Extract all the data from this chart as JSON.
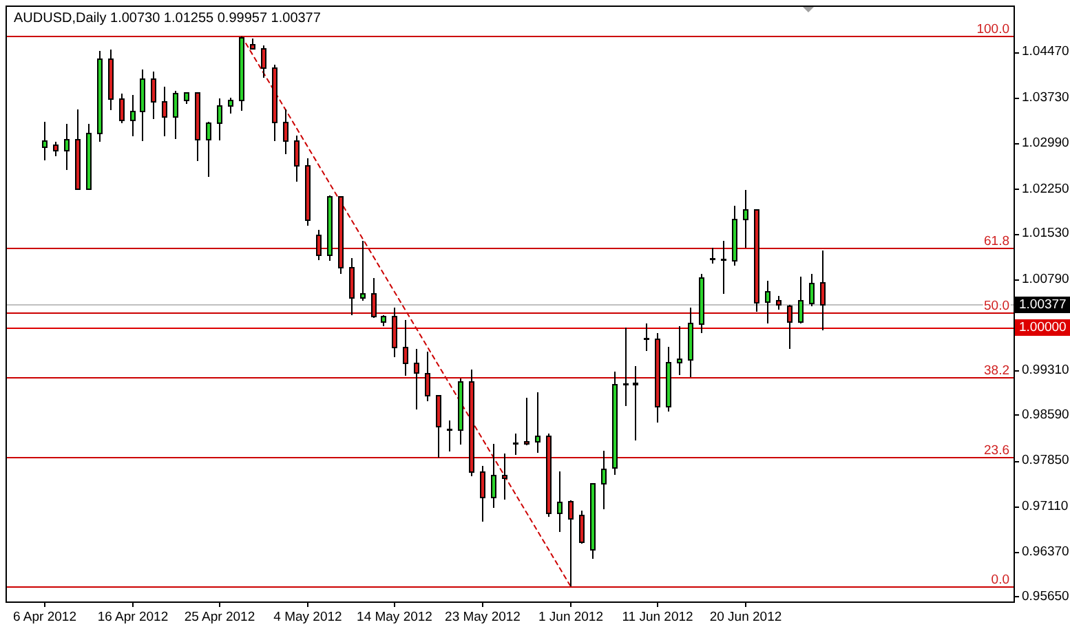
{
  "chart_data": {
    "type": "candlestick",
    "title": "AUDUSD,Daily 1.00730 1.01255 0.99957 1.00377",
    "categories": [
      null,
      null,
      null,
      "6 Apr 2012",
      null,
      null,
      null,
      null,
      null,
      null,
      null,
      "16 Apr 2012",
      null,
      null,
      null,
      null,
      null,
      null,
      null,
      "25 Apr 2012",
      null,
      null,
      null,
      null,
      null,
      null,
      null,
      "4 May 2012",
      null,
      null,
      null,
      null,
      null,
      null,
      null,
      "14 May 2012",
      null,
      null,
      null,
      null,
      null,
      null,
      null,
      "23 May 2012",
      null,
      null,
      null,
      null,
      null,
      null,
      null,
      "1 Jun 2012",
      null,
      null,
      null,
      null,
      null,
      null,
      null,
      "11 Jun 2012",
      null,
      null,
      null,
      null,
      null,
      null,
      null,
      "20 Jun 2012",
      null,
      null,
      null,
      null,
      null,
      null,
      null,
      null,
      null,
      null,
      null,
      null,
      null,
      null,
      null,
      null,
      null,
      null,
      null,
      null,
      null,
      null,
      null,
      null
    ],
    "ohlc": [
      null,
      null,
      null,
      [
        1.0292,
        1.0334,
        1.0271,
        1.0303
      ],
      [
        1.0296,
        1.0301,
        1.0278,
        1.0287
      ],
      [
        1.0287,
        1.033,
        1.0256,
        1.0305
      ],
      [
        1.0305,
        1.0354,
        1.0225,
        1.0225
      ],
      [
        1.0225,
        1.033,
        1.0225,
        1.0315
      ],
      [
        1.0315,
        1.0449,
        1.0301,
        1.0435
      ],
      [
        1.0435,
        1.0451,
        1.0353,
        1.037
      ],
      [
        1.037,
        1.0379,
        1.0332,
        1.0336
      ],
      [
        1.0336,
        1.0377,
        1.031,
        1.035
      ],
      [
        1.035,
        1.0418,
        1.0302,
        1.0403
      ],
      [
        1.0403,
        1.0415,
        1.0338,
        1.0366
      ],
      [
        1.0366,
        1.039,
        1.031,
        1.0342
      ],
      [
        1.0341,
        1.0384,
        1.0306,
        1.0379
      ],
      [
        1.0368,
        1.0382,
        1.0363,
        1.0381
      ],
      [
        1.0381,
        1.0381,
        1.027,
        1.0305
      ],
      [
        1.0305,
        1.0334,
        1.0244,
        1.0332
      ],
      [
        1.0332,
        1.0372,
        1.0304,
        1.0359
      ],
      [
        1.0359,
        1.0373,
        1.0347,
        1.0368
      ],
      [
        1.0368,
        1.0472,
        1.0351,
        1.047
      ],
      [
        1.0458,
        1.0468,
        1.0451,
        1.0452
      ],
      [
        1.0452,
        1.0457,
        1.0405,
        1.0421
      ],
      [
        1.0421,
        1.0426,
        1.0302,
        1.0333
      ],
      [
        1.0333,
        1.0354,
        1.0281,
        1.0302
      ],
      [
        1.0302,
        1.0311,
        1.0237,
        1.0262
      ],
      [
        1.0262,
        1.0275,
        1.0165,
        1.0174
      ],
      [
        1.015,
        1.0159,
        1.011,
        1.0118
      ],
      [
        1.0118,
        1.0215,
        1.0109,
        1.0212
      ],
      [
        1.0212,
        1.0213,
        1.0087,
        1.0098
      ],
      [
        1.0098,
        1.0113,
        1.002,
        1.0048
      ],
      [
        1.0048,
        1.0141,
        1.0044,
        1.0055
      ],
      [
        1.0055,
        1.0081,
        1.0016,
        1.0018
      ],
      [
        1.0009,
        1.0021,
        1.0003,
        1.0018
      ],
      [
        1.0018,
        1.0033,
        0.9953,
        0.9968
      ],
      [
        0.9968,
        1.0013,
        0.9922,
        0.9942
      ],
      [
        0.9942,
        0.9966,
        0.9868,
        0.9927
      ],
      [
        0.9926,
        0.9962,
        0.9881,
        0.989
      ],
      [
        0.989,
        0.989,
        0.979,
        0.984
      ],
      [
        0.9836,
        0.985,
        0.98,
        0.9835
      ],
      [
        0.9835,
        0.9918,
        0.9811,
        0.9913
      ],
      [
        0.9913,
        0.9933,
        0.976,
        0.9766
      ],
      [
        0.9766,
        0.9777,
        0.9686,
        0.9725
      ],
      [
        0.9725,
        0.9812,
        0.9709,
        0.9761
      ],
      [
        0.9761,
        0.9797,
        0.9722,
        0.9757
      ],
      [
        0.9812,
        0.9829,
        0.9794,
        0.9813
      ],
      [
        0.9815,
        0.9887,
        0.981,
        0.9812
      ],
      [
        0.9815,
        0.9896,
        0.9798,
        0.9824
      ],
      [
        0.9824,
        0.9829,
        0.9694,
        0.97
      ],
      [
        0.97,
        0.9768,
        0.9669,
        0.9717
      ],
      [
        0.9719,
        0.9721,
        0.9581,
        0.9691
      ],
      [
        0.9696,
        0.9704,
        0.9651,
        0.9653
      ],
      [
        0.9641,
        0.9749,
        0.9626,
        0.9747
      ],
      [
        0.9747,
        0.9801,
        0.9706,
        0.9771
      ],
      [
        0.9773,
        0.9929,
        0.9762,
        0.9908
      ],
      [
        0.9908,
        1.0,
        0.9873,
        0.9909
      ],
      [
        0.991,
        0.9938,
        0.9818,
        0.9908
      ],
      [
        0.9982,
        1.0007,
        0.9963,
        0.9983
      ],
      [
        0.9982,
        0.9992,
        0.9847,
        0.9872
      ],
      [
        0.9872,
        0.9969,
        0.9864,
        0.9944
      ],
      [
        0.9944,
        1.0003,
        0.9924,
        0.9949
      ],
      [
        0.9948,
        1.0033,
        0.992,
        1.0007
      ],
      [
        1.0006,
        1.0087,
        0.9992,
        1.0081
      ],
      [
        1.0111,
        1.013,
        1.0104,
        1.0112
      ],
      [
        1.0111,
        1.0141,
        1.0055,
        1.011
      ],
      [
        1.0109,
        1.0198,
        1.0101,
        1.0176
      ],
      [
        1.0176,
        1.0223,
        1.013,
        1.0191
      ],
      [
        1.0191,
        1.0191,
        1.0026,
        1.0041
      ],
      [
        1.0042,
        1.0076,
        1.0007,
        1.0058
      ],
      [
        1.0044,
        1.0052,
        1.0029,
        1.0037
      ],
      [
        1.0035,
        1.0037,
        0.9966,
        1.0009
      ],
      [
        1.0009,
        1.0083,
        1.0007,
        1.0044
      ],
      [
        1.0039,
        1.0087,
        1.0035,
        1.0072
      ],
      [
        1.0073,
        1.01255,
        0.99957,
        1.00377
      ],
      null,
      null,
      null,
      null,
      null,
      null,
      null,
      null,
      null,
      null,
      null,
      null,
      null,
      null,
      null,
      null,
      null
    ],
    "colors": [
      null,
      null,
      null,
      "#2bd42b",
      "#dc1f1f",
      "#2bd42b",
      "#dc1f1f",
      "#2bd42b",
      "#2bd42b",
      "#dc1f1f",
      "#dc1f1f",
      "#2bd42b",
      "#2bd42b",
      "#dc1f1f",
      "#dc1f1f",
      "#2bd42b",
      "#2bd42b",
      "#dc1f1f",
      "#2bd42b",
      "#2bd42b",
      "#2bd42b",
      "#2bd42b",
      "#dc1f1f",
      "#dc1f1f",
      "#dc1f1f",
      "#dc1f1f",
      "#dc1f1f",
      "#dc1f1f",
      "#dc1f1f",
      "#2bd42b",
      "#dc1f1f",
      "#dc1f1f",
      "#2bd42b",
      "#dc1f1f",
      "#2bd42b",
      "#dc1f1f",
      "#dc1f1f",
      "#dc1f1f",
      "#dc1f1f",
      "#dc1f1f",
      "#dc1f1f",
      "#2bd42b",
      "#dc1f1f",
      "#dc1f1f",
      "#2bd42b",
      "#dc1f1f",
      "#2bd42b",
      "#dc1f1f",
      "#2bd42b",
      "#dc1f1f",
      "#2bd42b",
      "#dc1f1f",
      "#dc1f1f",
      "#2bd42b",
      "#2bd42b",
      "#2bd42b",
      "#2bd42b",
      "#dc1f1f",
      "#2bd42b",
      "#dc1f1f",
      "#2bd42b",
      "#2bd42b",
      "#2bd42b",
      "#2bd42b",
      "#2bd42b",
      "#dc1f1f",
      "#2bd42b",
      "#2bd42b",
      "#dc1f1f",
      "#2bd42b",
      "#dc1f1f",
      "#dc1f1f",
      "#2bd42b",
      "#2bd42b",
      "#dc1f1f",
      null,
      null,
      null,
      null,
      null,
      null,
      null,
      null,
      null,
      null,
      null,
      null,
      null,
      null,
      null,
      null,
      null
    ],
    "series": [
      {
        "type": "line",
        "color": "#cc0000",
        "line_style": "dashed",
        "values": [
          null,
          null,
          null,
          null,
          null,
          null,
          null,
          null,
          null,
          null,
          null,
          null,
          null,
          null,
          null,
          null,
          null,
          null,
          null,
          null,
          null,
          1.0472,
          null,
          null,
          null,
          null,
          null,
          null,
          null,
          null,
          null,
          null,
          null,
          null,
          null,
          null,
          null,
          null,
          null,
          null,
          null,
          null,
          null,
          null,
          null,
          null,
          null,
          null,
          null,
          null,
          null,
          0.9581,
          null,
          null,
          null,
          null,
          null,
          null,
          null,
          null,
          null,
          null,
          null,
          null,
          null,
          null,
          null,
          null,
          null,
          null,
          null,
          null,
          null,
          null,
          null,
          null,
          null,
          null,
          null,
          null,
          null,
          null,
          null,
          null,
          null,
          null,
          null,
          null,
          null,
          null,
          null,
          null
        ]
      }
    ],
    "ylim": [
      0.9557,
      1.0522
    ],
    "yticks": [
      {
        "value": 1.0447,
        "label": "1.04470"
      },
      {
        "value": 1.0373,
        "label": "1.03730"
      },
      {
        "value": 1.0299,
        "label": "1.02990"
      },
      {
        "value": 1.0225,
        "label": "1.02250"
      },
      {
        "value": 1.0153,
        "label": "1.01530"
      },
      {
        "value": 1.0079,
        "label": "1.00790"
      },
      {
        "value": 1.00377,
        "label": "1.00377"
      },
      {
        "value": 1,
        "label": "1.00000"
      },
      {
        "value": 0.9931,
        "label": "0.99310"
      },
      {
        "value": 0.9859,
        "label": "0.98590"
      },
      {
        "value": 0.9785,
        "label": "0.97850"
      },
      {
        "value": 0.9711,
        "label": "0.97110"
      },
      {
        "value": 0.9637,
        "label": "0.96370"
      },
      {
        "value": 0.9565,
        "label": "0.95650"
      }
    ],
    "ref_lines": [
      {
        "axis": "y",
        "value": 1.0472,
        "color": "#cc0000"
      },
      {
        "axis": "y",
        "value": 1.013,
        "color": "#cc0000"
      },
      {
        "axis": "y",
        "value": 1.0025,
        "color": "#cc0000"
      },
      {
        "axis": "y",
        "value": 0.9921,
        "color": "#cc0000"
      },
      {
        "axis": "y",
        "value": 0.9791,
        "color": "#cc0000"
      },
      {
        "axis": "y",
        "value": 0.9581,
        "color": "#cc0000"
      },
      {
        "axis": "y",
        "value": 1,
        "color": "#dd0000"
      },
      {
        "axis": "y",
        "value": 1.00377,
        "color": "#c0c0c0"
      }
    ],
    "annotations": [
      {
        "text": "100.0",
        "y": 1.0472
      },
      {
        "text": "61.8",
        "y": 1.013
      },
      {
        "text": "50.0",
        "y": 1.0025
      },
      {
        "text": "38.2",
        "y": 0.9921
      },
      {
        "text": "23.6",
        "y": 0.9791
      },
      {
        "text": "0.0",
        "y": 0.9581
      }
    ]
  }
}
